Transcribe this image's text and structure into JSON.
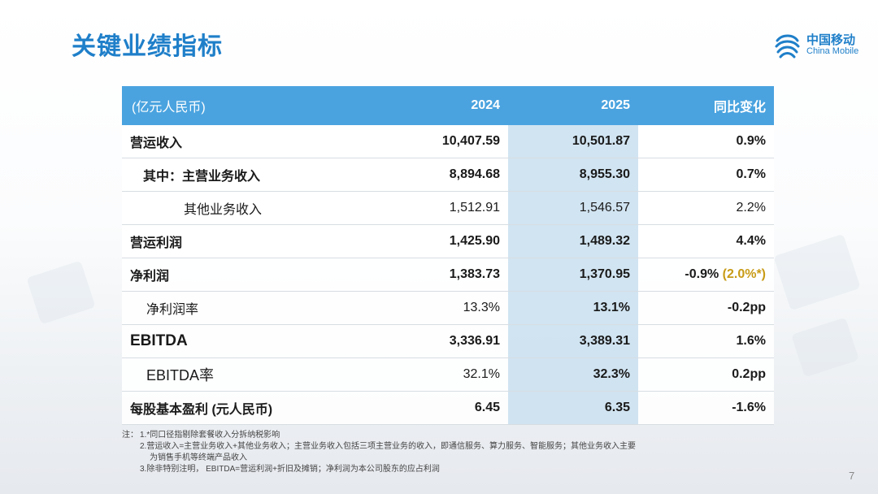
{
  "slide": {
    "title": "关键业绩指标",
    "page_number": "7",
    "brand_color": "#1f7fc9",
    "header_color": "#4aa3df",
    "highlight_color": "#c89b16"
  },
  "logo": {
    "cn": "中国移动",
    "en": "China Mobile"
  },
  "table": {
    "headers": [
      "(亿元人民币)",
      "2024",
      "2025",
      "同比变化"
    ],
    "rows": [
      {
        "label": "营运收入",
        "v2024": "10,407.59",
        "v2025": "10,501.87",
        "change": "0.9%"
      },
      {
        "label": "其中：主营业务收入",
        "v2024": "8,894.68",
        "v2025": "8,955.30",
        "change": "0.7%"
      },
      {
        "label": "其他业务收入",
        "v2024": "1,512.91",
        "v2025": "1,546.57",
        "change": "2.2%"
      },
      {
        "label": "营运利润",
        "v2024": "1,425.90",
        "v2025": "1,489.32",
        "change": "4.4%"
      },
      {
        "label": "净利润",
        "v2024": "1,383.73",
        "v2025": "1,370.95",
        "change": "-0.9%",
        "change_extra": "(2.0%*)"
      },
      {
        "label": "净利润率",
        "v2024": "13.3%",
        "v2025": "13.1%",
        "change": "-0.2pp"
      },
      {
        "label": "EBITDA",
        "v2024": "3,336.91",
        "v2025": "3,389.31",
        "change": "1.6%"
      },
      {
        "label": "EBITDA率",
        "v2024": "32.1%",
        "v2025": "32.3%",
        "change": "0.2pp"
      },
      {
        "label": "每股基本盈利 (元人民币)",
        "v2024": "6.45",
        "v2025": "6.35",
        "change": "-1.6%"
      }
    ]
  },
  "notes": {
    "prefix": "注：",
    "n1": "1.*同口径指剔除套餐收入分拆纳税影响",
    "n2a": "2.营运收入=主营业务收入+其他业务收入；主营业务收入包括三项主营业务的收入，即通信服务、算力服务、智能服务；其他业务收入主要",
    "n2b": "为销售手机等终端产品收入",
    "n3": "3.除非特别注明， EBITDA=营运利润+折旧及摊销；净利润为本公司股东的应占利润"
  }
}
